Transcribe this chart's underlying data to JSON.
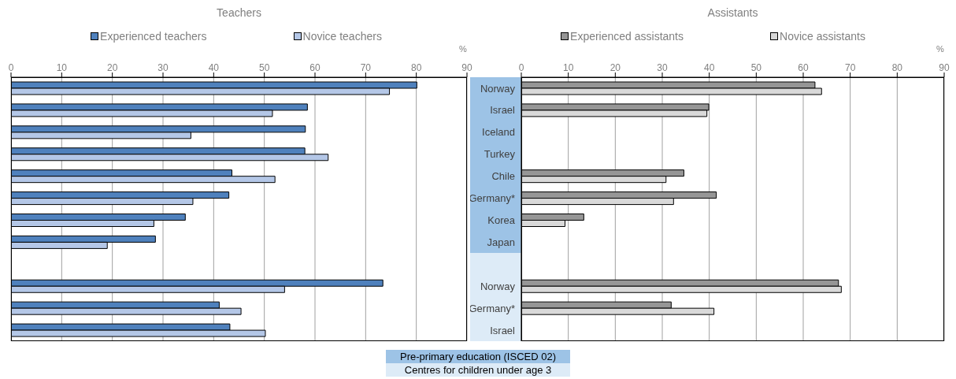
{
  "chart_data": [
    {
      "type": "bar",
      "orientation": "horizontal",
      "title": "Teachers",
      "xlabel": "%",
      "categories": [
        null,
        null,
        null,
        null,
        null,
        null,
        null,
        null,
        null,
        null,
        null,
        null
      ],
      "xlim": [
        0,
        90
      ],
      "xticks": [
        0,
        10,
        20,
        30,
        40,
        50,
        60,
        70,
        80,
        90
      ],
      "grid": "x",
      "legend": "top",
      "tick_labels": "x",
      "series": [
        {
          "name": "Experienced teachers",
          "color": "#4f81bd",
          "values": [
            80.1,
            58.5,
            58.1,
            58.0,
            43.6,
            43.0,
            34.4,
            28.5,
            null,
            73.4,
            41.1,
            43.2
          ]
        },
        {
          "name": "Novice teachers",
          "color": "#b4c7e7",
          "values": [
            74.7,
            51.6,
            35.5,
            62.6,
            52.1,
            35.9,
            28.2,
            19.0,
            null,
            54.0,
            45.4,
            50.2
          ]
        }
      ]
    },
    {
      "type": "bar",
      "orientation": "horizontal",
      "title": "Assistants",
      "xlabel": "%",
      "categories": [
        "Norway",
        "Israel",
        "Iceland",
        "Turkey",
        "Chile",
        "Germany*",
        "Korea",
        "Japan",
        null,
        "Norway",
        "Germany*",
        "Israel"
      ],
      "xlim": [
        0,
        90
      ],
      "xticks": [
        0,
        10,
        20,
        30,
        40,
        50,
        60,
        70,
        80,
        90
      ],
      "grid": "x",
      "legend": "top",
      "annotations": [
        "Pre-primary education (ISCED 02)",
        "Centres for children under age 3"
      ],
      "series": [
        {
          "name": "Experienced assistants",
          "color": "#969696",
          "values": [
            62.5,
            39.9,
            null,
            null,
            34.6,
            41.5,
            13.3,
            null,
            null,
            67.5,
            31.9,
            null
          ]
        },
        {
          "name": "Novice assistants",
          "color": "#d9d9d9",
          "values": [
            63.9,
            39.5,
            null,
            null,
            30.8,
            32.4,
            9.3,
            null,
            null,
            68.1,
            41.0,
            null
          ]
        }
      ]
    }
  ]
}
